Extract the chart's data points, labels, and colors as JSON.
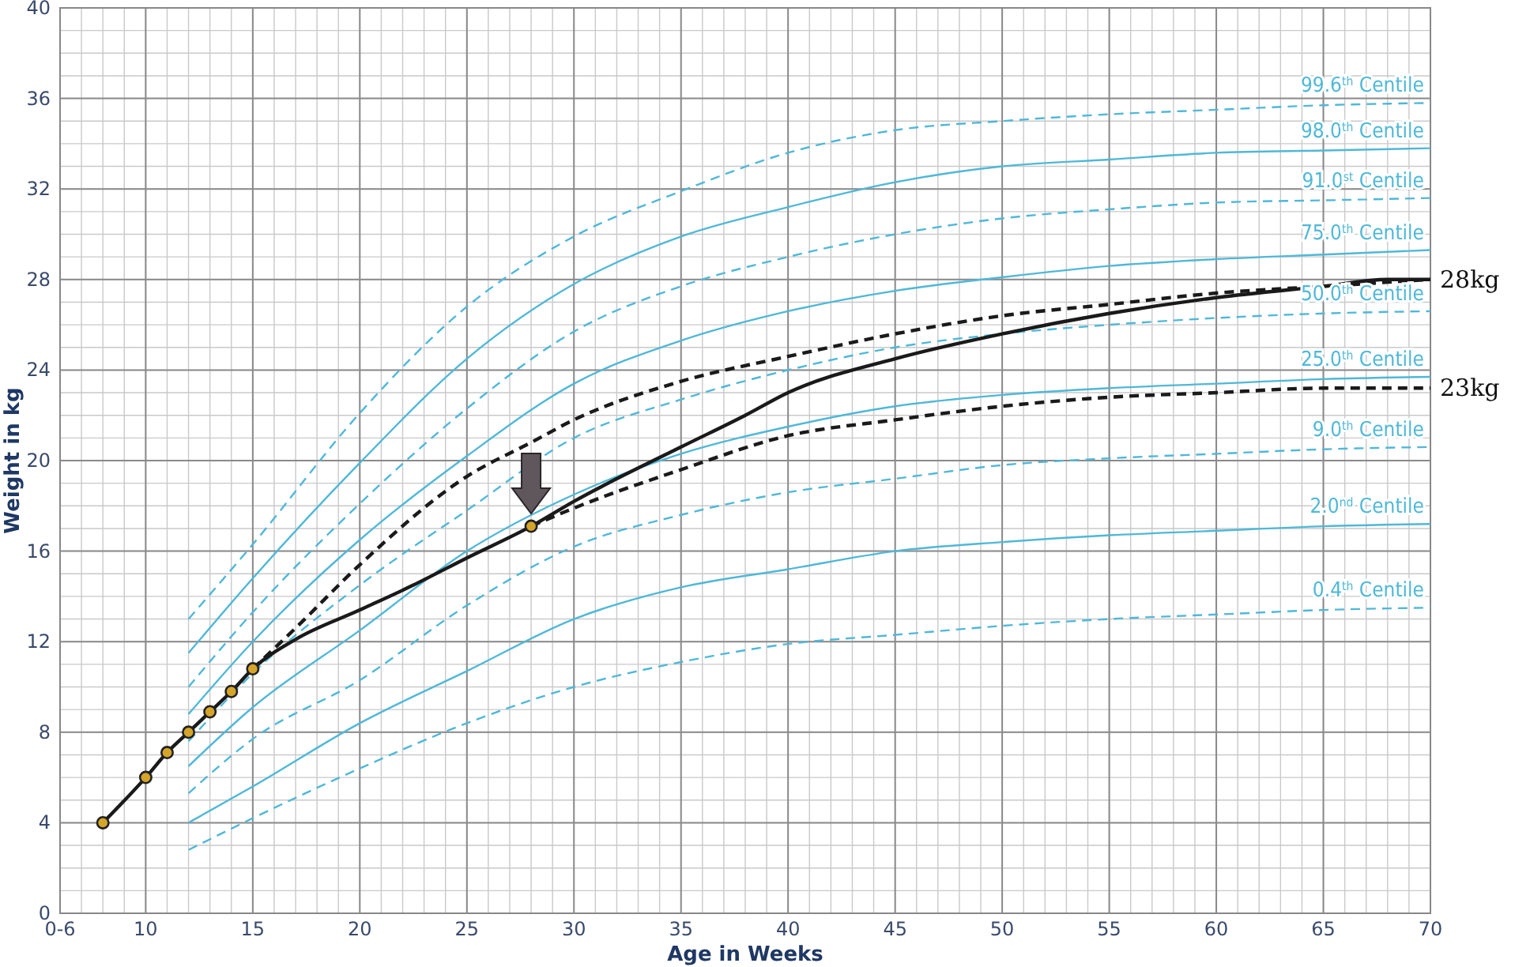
{
  "chart_data": {
    "type": "line",
    "xlabel": "Age in Weeks",
    "ylabel": "Weight in kg",
    "xlim": [
      6,
      70
    ],
    "xticks": [
      {
        "value": 6,
        "label": "0-6"
      },
      10,
      15,
      20,
      25,
      30,
      35,
      40,
      45,
      50,
      55,
      60,
      65,
      70
    ],
    "ylim": [
      0,
      40
    ],
    "yticks": [
      0,
      4,
      8,
      12,
      16,
      20,
      24,
      28,
      32,
      36,
      40
    ],
    "grid": true,
    "series": [
      {
        "name": "99.6$^{th}$ Centile",
        "color": "#4fb8d8",
        "line_style": "dashed",
        "x": [
          12,
          15,
          20,
          25,
          30,
          35,
          40,
          45,
          50,
          55,
          60,
          65,
          70
        ],
        "values": [
          13.0,
          16.3,
          22.1,
          26.8,
          29.9,
          31.9,
          33.6,
          34.6,
          35.0,
          35.3,
          35.5,
          35.7,
          35.8
        ]
      },
      {
        "name": "98.0$^{th}$ Centile",
        "color": "#4fb8d8",
        "line_style": "solid",
        "x": [
          12,
          15,
          20,
          25,
          30,
          35,
          40,
          45,
          50,
          55,
          60,
          65,
          70
        ],
        "values": [
          11.5,
          14.8,
          19.9,
          24.5,
          27.8,
          29.9,
          31.2,
          32.3,
          33.0,
          33.3,
          33.6,
          33.7,
          33.8
        ]
      },
      {
        "name": "91.0$^{st}$ Centile",
        "color": "#4fb8d8",
        "line_style": "dashed",
        "x": [
          12,
          15,
          20,
          25,
          30,
          35,
          40,
          45,
          50,
          55,
          60,
          65,
          70
        ],
        "values": [
          10.0,
          13.3,
          18.1,
          22.3,
          25.7,
          27.7,
          29.0,
          30.0,
          30.7,
          31.1,
          31.4,
          31.5,
          31.6
        ]
      },
      {
        "name": "75.0$^{th}$ Centile",
        "color": "#4fb8d8",
        "line_style": "solid",
        "x": [
          12,
          15,
          20,
          25,
          30,
          35,
          40,
          45,
          50,
          55,
          60,
          65,
          70
        ],
        "values": [
          8.8,
          12.0,
          16.5,
          20.2,
          23.4,
          25.3,
          26.6,
          27.5,
          28.1,
          28.6,
          28.9,
          29.1,
          29.3
        ]
      },
      {
        "name": "50.0$^{th}$ Centile",
        "color": "#4fb8d8",
        "line_style": "dashed",
        "x": [
          12,
          15,
          20,
          25,
          30,
          35,
          40,
          45,
          50,
          55,
          60,
          65,
          70
        ],
        "values": [
          7.6,
          10.6,
          14.5,
          17.8,
          21.0,
          22.7,
          24.0,
          25.0,
          25.6,
          26.0,
          26.3,
          26.5,
          26.6
        ]
      },
      {
        "name": "25.0$^{th}$ Centile",
        "color": "#4fb8d8",
        "line_style": "solid",
        "x": [
          12,
          15,
          20,
          25,
          30,
          35,
          40,
          45,
          50,
          55,
          60,
          65,
          70
        ],
        "values": [
          6.5,
          9.1,
          12.5,
          16.0,
          18.5,
          20.3,
          21.5,
          22.4,
          22.9,
          23.2,
          23.4,
          23.6,
          23.7
        ]
      },
      {
        "name": "9.0$^{th}$ Centile",
        "color": "#4fb8d8",
        "line_style": "dashed",
        "x": [
          12,
          15,
          20,
          25,
          30,
          35,
          40,
          45,
          50,
          55,
          60,
          65,
          70
        ],
        "values": [
          5.3,
          7.7,
          10.3,
          13.6,
          16.2,
          17.6,
          18.6,
          19.2,
          19.8,
          20.1,
          20.3,
          20.5,
          20.6
        ]
      },
      {
        "name": "2.0$^{nd}$ Centile",
        "color": "#4fb8d8",
        "line_style": "solid",
        "x": [
          12,
          15,
          20,
          25,
          30,
          35,
          40,
          45,
          50,
          55,
          60,
          65,
          70
        ],
        "values": [
          4.0,
          5.6,
          8.4,
          10.7,
          13.0,
          14.4,
          15.2,
          16.0,
          16.4,
          16.7,
          16.9,
          17.1,
          17.2
        ]
      },
      {
        "name": "0.4$^{th}$ Centile",
        "color": "#4fb8d8",
        "line_style": "dashed",
        "x": [
          12,
          15,
          20,
          25,
          30,
          35,
          40,
          45,
          50,
          55,
          60,
          65,
          70
        ],
        "values": [
          2.8,
          4.2,
          6.4,
          8.4,
          10.0,
          11.1,
          11.9,
          12.3,
          12.7,
          13.0,
          13.2,
          13.4,
          13.5
        ]
      },
      {
        "color": "#1a1a1a",
        "line_style": "dashed",
        "x": [
          15,
          17,
          20,
          25,
          28,
          30,
          35,
          40,
          45,
          50,
          55,
          60,
          65,
          70
        ],
        "values": [
          10.8,
          12.6,
          15.4,
          19.3,
          20.8,
          21.8,
          23.5,
          24.6,
          25.6,
          26.4,
          26.9,
          27.4,
          27.7,
          28.0
        ]
      },
      {
        "color": "#1a1a1a",
        "line_style": "dashed",
        "x": [
          28,
          30,
          35,
          40,
          45,
          50,
          55,
          60,
          65,
          70
        ],
        "values": [
          17.1,
          17.9,
          19.6,
          21.1,
          21.8,
          22.4,
          22.8,
          23.0,
          23.2,
          23.2
        ]
      },
      {
        "color": "#1a1a1a",
        "line_style": "solid",
        "x": [
          8,
          10,
          11,
          12,
          13,
          14,
          15,
          17,
          20,
          22.5,
          25,
          28,
          30,
          35,
          38,
          40,
          45,
          50,
          55,
          60,
          65,
          68,
          70
        ],
        "values": [
          4,
          6,
          7.1,
          8,
          8.9,
          9.8,
          10.8,
          12.1,
          13.4,
          14.5,
          15.7,
          17.1,
          18.2,
          20.6,
          22.0,
          23.0,
          24.5,
          25.6,
          26.5,
          27.2,
          27.7,
          28.0,
          28.0
        ]
      },
      {
        "type": "scatter",
        "color": "#d4a52a",
        "marker": "circle",
        "x": [
          8,
          10,
          11,
          12,
          13,
          14,
          15,
          28
        ],
        "values": [
          4,
          6,
          7.1,
          8,
          8.9,
          9.8,
          10.8,
          17.1
        ]
      }
    ],
    "annotations": [
      {
        "text": "28kg",
        "x": 70,
        "y": 28.0
      },
      {
        "text": "23kg",
        "x": 70,
        "y": 23.2
      }
    ]
  }
}
